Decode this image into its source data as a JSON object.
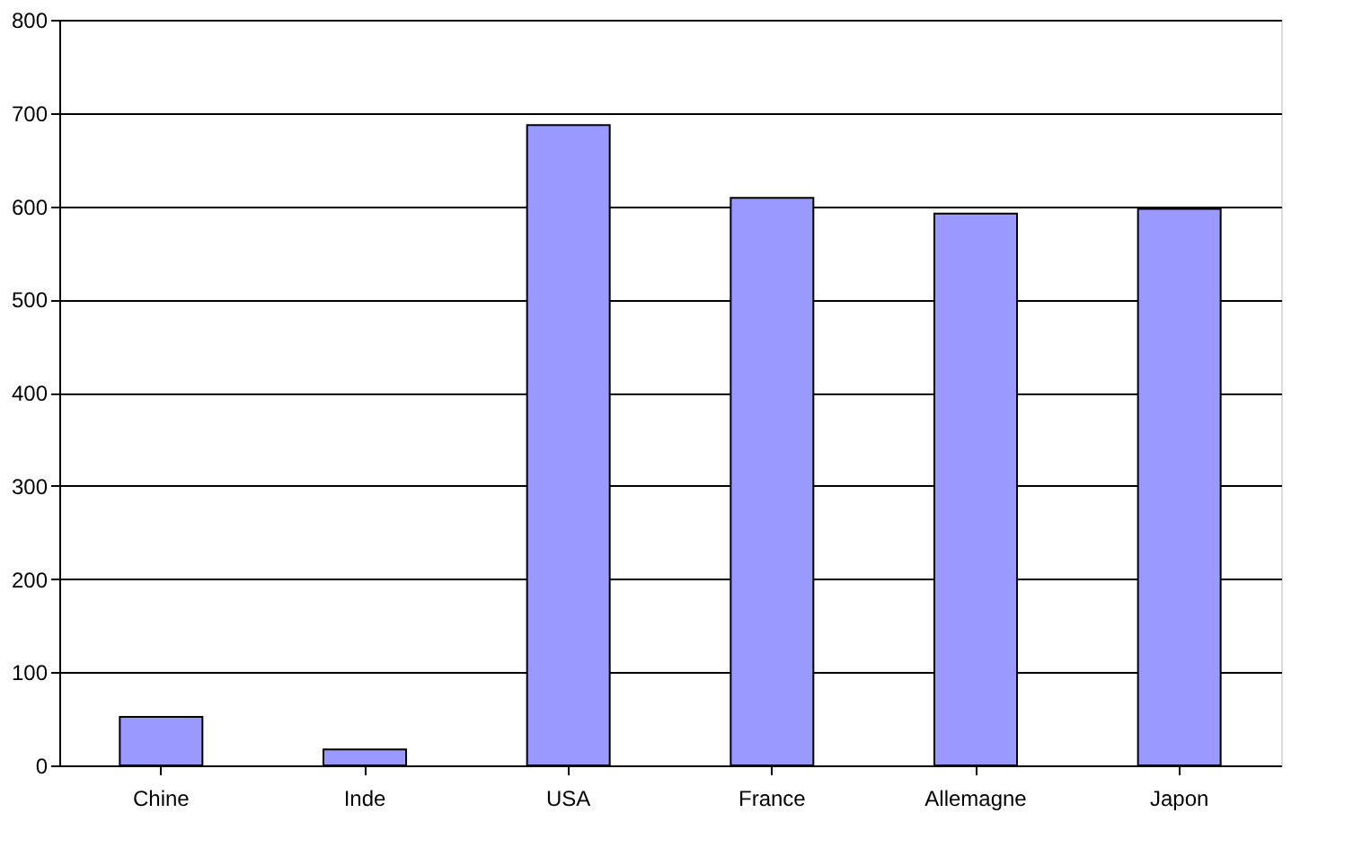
{
  "chart_data": {
    "type": "bar",
    "categories": [
      "Chine",
      "Inde",
      "USA",
      "France",
      "Allemagne",
      "Japon"
    ],
    "values": [
      52,
      17,
      687,
      609,
      592,
      597
    ],
    "color": "#9999ff",
    "ylim": [
      0,
      800
    ],
    "yticks": [
      0,
      100,
      200,
      300,
      400,
      500,
      600,
      700,
      800
    ],
    "grid": "y"
  }
}
